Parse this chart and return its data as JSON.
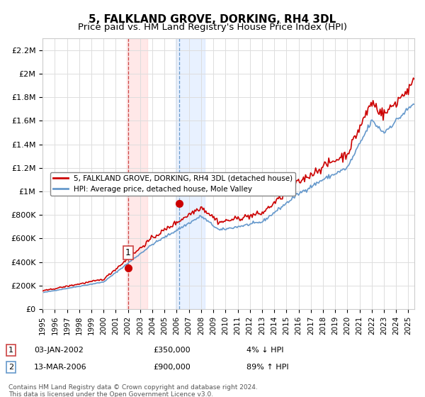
{
  "title": "5, FALKLAND GROVE, DORKING, RH4 3DL",
  "subtitle": "Price paid vs. HM Land Registry's House Price Index (HPI)",
  "legend_line1": "5, FALKLAND GROVE, DORKING, RH4 3DL (detached house)",
  "legend_line2": "HPI: Average price, detached house, Mole Valley",
  "transaction1_date": "03-JAN-2002",
  "transaction1_price": "£350,000",
  "transaction1_hpi": "4% ↓ HPI",
  "transaction1_year": 2002.0,
  "transaction1_value": 350000,
  "transaction2_date": "13-MAR-2006",
  "transaction2_price": "£900,000",
  "transaction2_hpi": "89% ↑ HPI",
  "transaction2_year": 2006.2,
  "transaction2_value": 900000,
  "hpi_color": "#6699cc",
  "price_color": "#cc0000",
  "marker_color": "#cc0000",
  "vline_color1": "#cc4444",
  "vline_color2": "#6699cc",
  "background_color": "#ffffff",
  "grid_color": "#dddddd",
  "ylim": [
    0,
    2300000
  ],
  "yticks": [
    0,
    200000,
    400000,
    600000,
    800000,
    1000000,
    1200000,
    1400000,
    1600000,
    1800000,
    2000000,
    2200000
  ],
  "ytick_labels": [
    "£0",
    "£200K",
    "£400K",
    "£600K",
    "£800K",
    "£1M",
    "£1.2M",
    "£1.4M",
    "£1.6M",
    "£1.8M",
    "£2M",
    "£2.2M"
  ],
  "footer": "Contains HM Land Registry data © Crown copyright and database right 2024.\nThis data is licensed under the Open Government Licence v3.0.",
  "xlim_start": 1995.0,
  "xlim_end": 2025.5,
  "span1_start": 2001.9,
  "span1_end": 2003.6,
  "span2_start": 2005.9,
  "span2_end": 2008.3
}
